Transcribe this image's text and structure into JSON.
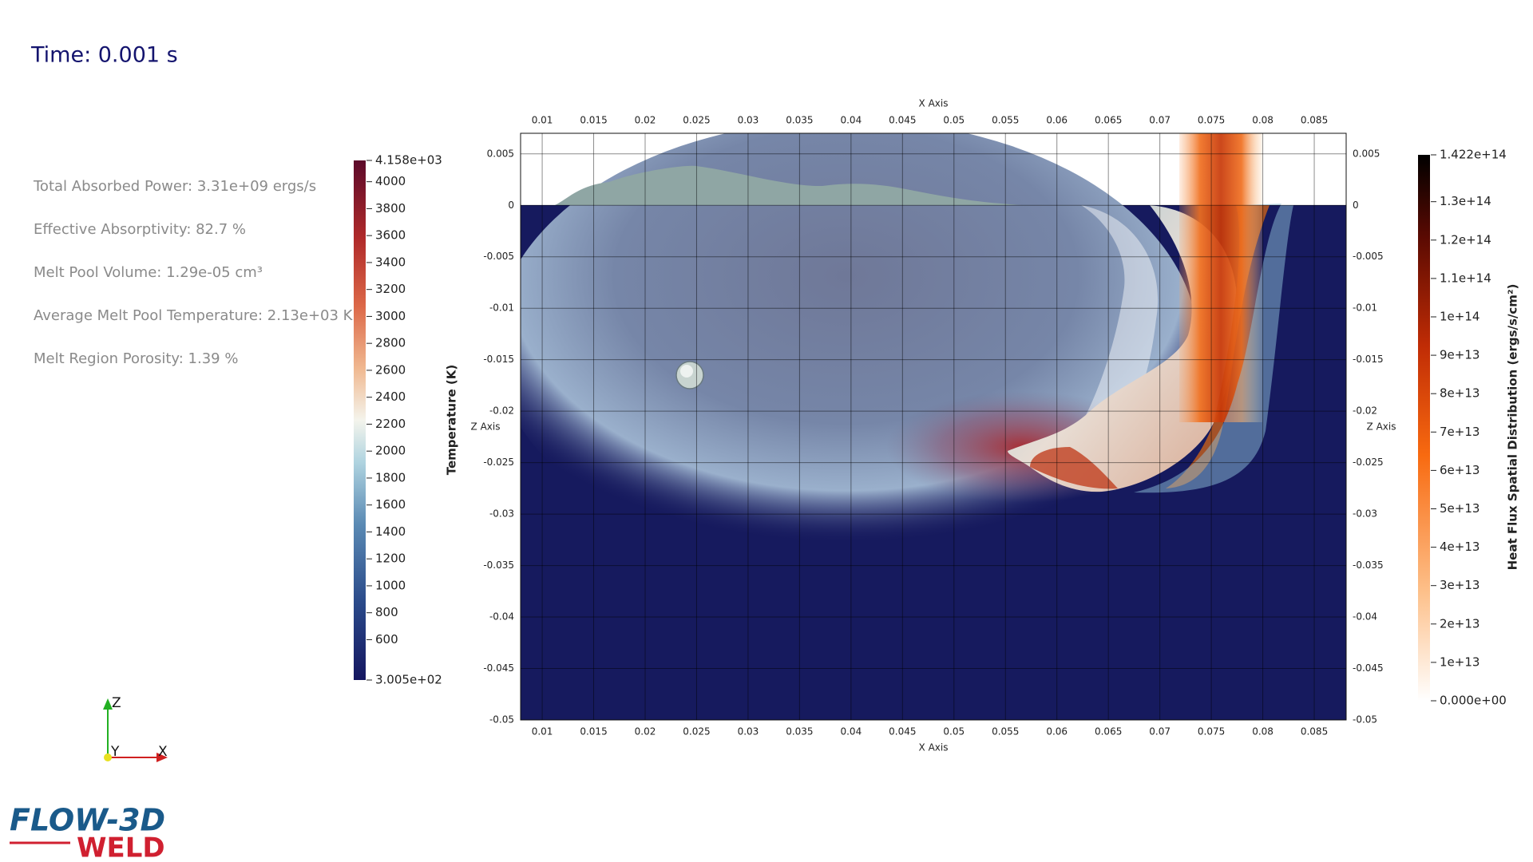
{
  "time": "Time: 0.001 s",
  "stats": [
    "Total Absorbed Power: 3.31e+09 ergs/s",
    "Effective Absorptivity: 82.7 %",
    "Melt Pool Volume: 1.29e-05 cm³",
    "Average Melt Pool Temperature: 2.13e+03 K",
    "Melt Region Porosity: 1.39 %"
  ],
  "plot": {
    "x_axis_title": "X Axis",
    "z_axis_title": "Z Axis",
    "xlim": [
      0.0079,
      0.0881
    ],
    "zlim": [
      -0.05,
      0.007
    ],
    "xticks": [
      0.01,
      0.015,
      0.02,
      0.025,
      0.03,
      0.035,
      0.04,
      0.045,
      0.05,
      0.055,
      0.06,
      0.065,
      0.07,
      0.075,
      0.08,
      0.085
    ],
    "zticks": [
      0.005,
      0,
      -0.005,
      -0.01,
      -0.015,
      -0.02,
      -0.025,
      -0.03,
      -0.035,
      -0.04,
      -0.045,
      -0.05
    ]
  },
  "temperature_bar": {
    "title": "Temperature (K)",
    "range": [
      300.5,
      4158
    ],
    "ticks": [
      {
        "value": 4158,
        "label": "4.158e+03"
      },
      4000,
      3800,
      3600,
      3400,
      3200,
      3000,
      2800,
      2600,
      2400,
      2200,
      2000,
      1800,
      1600,
      1400,
      1200,
      1000,
      800,
      600,
      {
        "value": 300.5,
        "label": "3.005e+02"
      }
    ]
  },
  "heat_flux_bar": {
    "title": "Heat Flux Spatial Distribution (ergs/s/cm²)",
    "range": [
      0,
      142200000000000.0
    ],
    "ticks": [
      {
        "value": 142200000000000.0,
        "label": "1.422e+14"
      },
      {
        "value": 130000000000000.0,
        "label": "1.3e+14"
      },
      {
        "value": 120000000000000.0,
        "label": "1.2e+14"
      },
      {
        "value": 110000000000000.0,
        "label": "1.1e+14"
      },
      {
        "value": 100000000000000.0,
        "label": "1e+14"
      },
      {
        "value": 90000000000000.0,
        "label": "9e+13"
      },
      {
        "value": 80000000000000.0,
        "label": "8e+13"
      },
      {
        "value": 70000000000000.0,
        "label": "7e+13"
      },
      {
        "value": 60000000000000.0,
        "label": "6e+13"
      },
      {
        "value": 50000000000000.0,
        "label": "5e+13"
      },
      {
        "value": 40000000000000.0,
        "label": "4e+13"
      },
      {
        "value": 30000000000000.0,
        "label": "3e+13"
      },
      {
        "value": 20000000000000.0,
        "label": "2e+13"
      },
      {
        "value": 10000000000000.0,
        "label": "1e+13"
      },
      {
        "value": 0,
        "label": "0.000e+00"
      }
    ]
  },
  "triad": {
    "z": "Z",
    "y": "Y",
    "x": "X"
  },
  "logo": {
    "top": "FLOW-3D",
    "bottom": "WELD"
  }
}
